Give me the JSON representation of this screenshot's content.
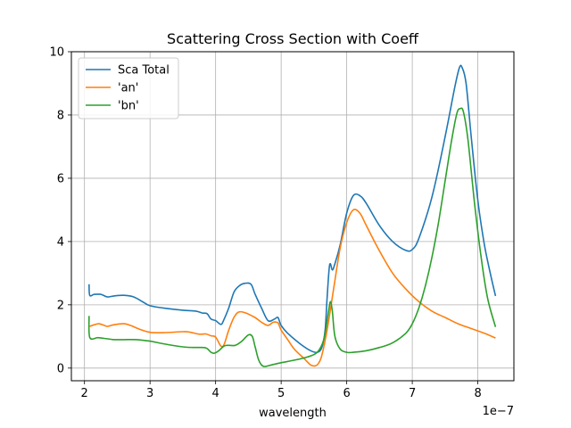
{
  "chart_data": {
    "type": "line",
    "title": "Scattering Cross Section with Coeff",
    "xlabel": "wavelength",
    "ylabel": "",
    "x_offset_label": "1e−7",
    "x_scale": 1e-07,
    "xlim": [
      1.8,
      8.55
    ],
    "ylim": [
      -0.4,
      10
    ],
    "xticks": [
      2,
      3,
      4,
      5,
      6,
      7,
      8
    ],
    "yticks": [
      0,
      2,
      4,
      6,
      8,
      10
    ],
    "grid": true,
    "legend_position": "top-left",
    "series": [
      {
        "name": "Sca Total",
        "color": "#1f77b4",
        "points": [
          [
            2.07,
            2.65
          ],
          [
            2.08,
            2.3
          ],
          [
            2.15,
            2.33
          ],
          [
            2.25,
            2.33
          ],
          [
            2.35,
            2.25
          ],
          [
            2.45,
            2.28
          ],
          [
            2.6,
            2.3
          ],
          [
            2.75,
            2.25
          ],
          [
            2.9,
            2.08
          ],
          [
            3.0,
            1.97
          ],
          [
            3.2,
            1.9
          ],
          [
            3.5,
            1.83
          ],
          [
            3.7,
            1.8
          ],
          [
            3.8,
            1.74
          ],
          [
            3.87,
            1.72
          ],
          [
            3.93,
            1.55
          ],
          [
            4.0,
            1.5
          ],
          [
            4.08,
            1.38
          ],
          [
            4.12,
            1.5
          ],
          [
            4.2,
            1.9
          ],
          [
            4.28,
            2.4
          ],
          [
            4.36,
            2.6
          ],
          [
            4.45,
            2.68
          ],
          [
            4.54,
            2.65
          ],
          [
            4.6,
            2.35
          ],
          [
            4.7,
            1.9
          ],
          [
            4.8,
            1.5
          ],
          [
            4.9,
            1.55
          ],
          [
            4.95,
            1.6
          ],
          [
            5.0,
            1.35
          ],
          [
            5.1,
            1.1
          ],
          [
            5.3,
            0.75
          ],
          [
            5.45,
            0.55
          ],
          [
            5.55,
            0.5
          ],
          [
            5.62,
            0.65
          ],
          [
            5.67,
            1.2
          ],
          [
            5.7,
            2.2
          ],
          [
            5.73,
            3.1
          ],
          [
            5.75,
            3.3
          ],
          [
            5.78,
            3.1
          ],
          [
            5.82,
            3.3
          ],
          [
            5.9,
            3.9
          ],
          [
            6.0,
            4.9
          ],
          [
            6.1,
            5.45
          ],
          [
            6.2,
            5.45
          ],
          [
            6.3,
            5.2
          ],
          [
            6.5,
            4.5
          ],
          [
            6.7,
            4.0
          ],
          [
            6.9,
            3.72
          ],
          [
            7.0,
            3.75
          ],
          [
            7.1,
            4.1
          ],
          [
            7.3,
            5.4
          ],
          [
            7.5,
            7.3
          ],
          [
            7.65,
            8.9
          ],
          [
            7.72,
            9.5
          ],
          [
            7.76,
            9.5
          ],
          [
            7.82,
            9.0
          ],
          [
            7.9,
            7.3
          ],
          [
            8.0,
            5.3
          ],
          [
            8.1,
            3.9
          ],
          [
            8.2,
            2.9
          ],
          [
            8.27,
            2.28
          ]
        ]
      },
      {
        "name": "'an'",
        "color": "#ff7f0e",
        "points": [
          [
            2.08,
            1.32
          ],
          [
            2.15,
            1.37
          ],
          [
            2.22,
            1.4
          ],
          [
            2.3,
            1.35
          ],
          [
            2.35,
            1.32
          ],
          [
            2.45,
            1.37
          ],
          [
            2.6,
            1.4
          ],
          [
            2.7,
            1.35
          ],
          [
            2.85,
            1.22
          ],
          [
            3.0,
            1.13
          ],
          [
            3.2,
            1.12
          ],
          [
            3.5,
            1.15
          ],
          [
            3.6,
            1.14
          ],
          [
            3.75,
            1.07
          ],
          [
            3.85,
            1.08
          ],
          [
            3.93,
            1.02
          ],
          [
            4.0,
            0.98
          ],
          [
            4.08,
            0.7
          ],
          [
            4.13,
            0.75
          ],
          [
            4.2,
            1.2
          ],
          [
            4.28,
            1.6
          ],
          [
            4.35,
            1.77
          ],
          [
            4.45,
            1.75
          ],
          [
            4.6,
            1.6
          ],
          [
            4.7,
            1.45
          ],
          [
            4.8,
            1.35
          ],
          [
            4.88,
            1.45
          ],
          [
            4.95,
            1.43
          ],
          [
            5.0,
            1.2
          ],
          [
            5.1,
            0.9
          ],
          [
            5.2,
            0.6
          ],
          [
            5.35,
            0.3
          ],
          [
            5.45,
            0.1
          ],
          [
            5.52,
            0.07
          ],
          [
            5.57,
            0.15
          ],
          [
            5.62,
            0.4
          ],
          [
            5.7,
            1.2
          ],
          [
            5.8,
            2.5
          ],
          [
            5.9,
            3.8
          ],
          [
            6.0,
            4.6
          ],
          [
            6.1,
            5.0
          ],
          [
            6.2,
            4.9
          ],
          [
            6.3,
            4.5
          ],
          [
            6.5,
            3.7
          ],
          [
            6.7,
            3.0
          ],
          [
            6.9,
            2.5
          ],
          [
            7.1,
            2.1
          ],
          [
            7.3,
            1.8
          ],
          [
            7.5,
            1.6
          ],
          [
            7.7,
            1.4
          ],
          [
            7.9,
            1.25
          ],
          [
            8.1,
            1.1
          ],
          [
            8.27,
            0.95
          ]
        ]
      },
      {
        "name": "'bn'",
        "color": "#2ca02c",
        "points": [
          [
            2.07,
            1.65
          ],
          [
            2.08,
            0.97
          ],
          [
            2.2,
            0.96
          ],
          [
            2.3,
            0.94
          ],
          [
            2.45,
            0.9
          ],
          [
            2.6,
            0.9
          ],
          [
            2.8,
            0.9
          ],
          [
            3.0,
            0.85
          ],
          [
            3.2,
            0.77
          ],
          [
            3.5,
            0.67
          ],
          [
            3.7,
            0.65
          ],
          [
            3.85,
            0.64
          ],
          [
            3.93,
            0.5
          ],
          [
            3.98,
            0.47
          ],
          [
            4.05,
            0.55
          ],
          [
            4.13,
            0.7
          ],
          [
            4.2,
            0.72
          ],
          [
            4.3,
            0.72
          ],
          [
            4.4,
            0.85
          ],
          [
            4.5,
            1.05
          ],
          [
            4.56,
            1.0
          ],
          [
            4.6,
            0.7
          ],
          [
            4.65,
            0.3
          ],
          [
            4.7,
            0.1
          ],
          [
            4.75,
            0.05
          ],
          [
            4.85,
            0.1
          ],
          [
            5.0,
            0.17
          ],
          [
            5.2,
            0.25
          ],
          [
            5.4,
            0.35
          ],
          [
            5.55,
            0.5
          ],
          [
            5.65,
            0.9
          ],
          [
            5.72,
            1.75
          ],
          [
            5.75,
            2.1
          ],
          [
            5.78,
            1.8
          ],
          [
            5.82,
            1.0
          ],
          [
            5.9,
            0.6
          ],
          [
            6.0,
            0.5
          ],
          [
            6.1,
            0.5
          ],
          [
            6.3,
            0.55
          ],
          [
            6.5,
            0.65
          ],
          [
            6.7,
            0.8
          ],
          [
            6.9,
            1.1
          ],
          [
            7.0,
            1.4
          ],
          [
            7.1,
            1.9
          ],
          [
            7.2,
            2.6
          ],
          [
            7.3,
            3.5
          ],
          [
            7.4,
            4.6
          ],
          [
            7.5,
            5.9
          ],
          [
            7.6,
            7.2
          ],
          [
            7.68,
            8.05
          ],
          [
            7.73,
            8.2
          ],
          [
            7.78,
            8.1
          ],
          [
            7.85,
            7.2
          ],
          [
            7.95,
            5.2
          ],
          [
            8.05,
            3.5
          ],
          [
            8.15,
            2.2
          ],
          [
            8.27,
            1.3
          ]
        ]
      }
    ]
  }
}
